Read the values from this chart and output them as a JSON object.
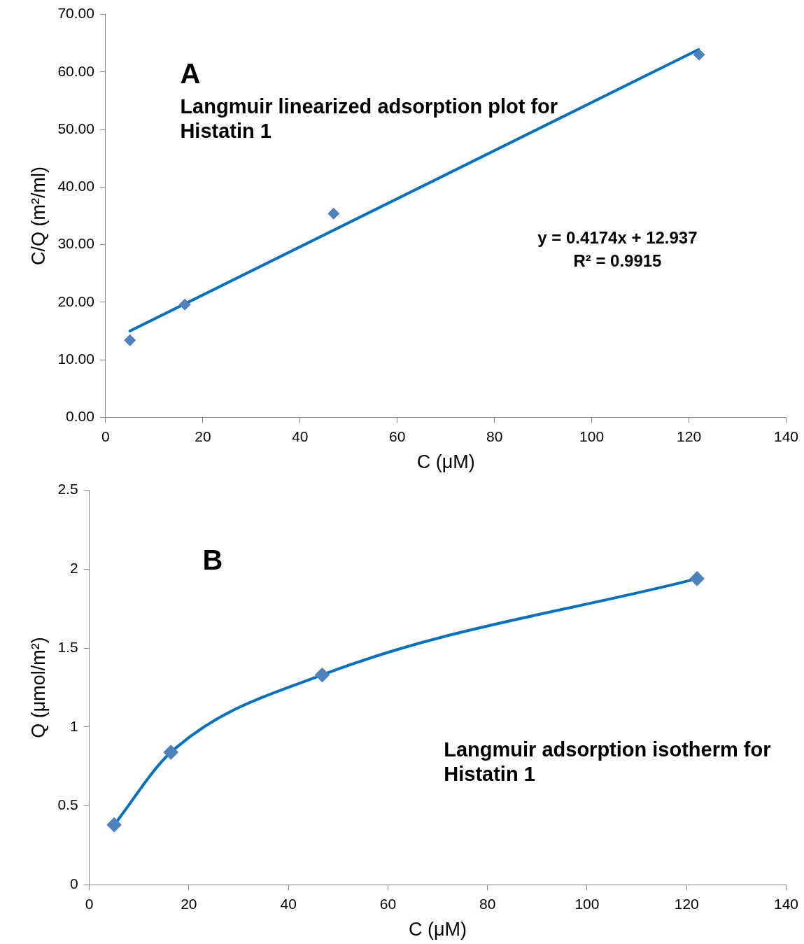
{
  "chart_data": [
    {
      "type": "scatter",
      "xlabel": "C (μM)",
      "ylabel": "C/Q (m²/ml)",
      "marker": "diamond",
      "grid": false,
      "legend": false,
      "xlim": [
        0,
        140
      ],
      "xticks": [
        0,
        20,
        40,
        60,
        80,
        100,
        120,
        140
      ],
      "ylim": [
        0,
        70
      ],
      "yticks": [
        {
          "value": 0,
          "label": "0.00"
        },
        {
          "value": 10,
          "label": "10.00"
        },
        {
          "value": 20,
          "label": "20.00"
        },
        {
          "value": 30,
          "label": "30.00"
        },
        {
          "value": 40,
          "label": "40.00"
        },
        {
          "value": 50,
          "label": "50.00"
        },
        {
          "value": 60,
          "label": "60.00"
        },
        {
          "value": 70,
          "label": "70.00"
        }
      ],
      "series": [
        {
          "color": "#4f81bd",
          "x": [
            5,
            16.3,
            46.9,
            122.1
          ],
          "values": [
            13.4,
            19.6,
            35.4,
            63.0
          ]
        },
        {
          "type": "line",
          "color": "#0070c0",
          "marker": "none",
          "x": [
            5,
            122
          ],
          "values": [
            15.0,
            63.9
          ]
        }
      ],
      "annotations": [
        "A",
        "Langmuir linearized adsorption plot for Histatin 1",
        "y = 0.4174x + 12.937",
        "R² = 0.9915"
      ]
    },
    {
      "type": "line",
      "xlabel": "C (μM)",
      "ylabel": "Q (μmol/m²)",
      "marker": "diamond",
      "grid": false,
      "legend": false,
      "xlim": [
        0,
        140
      ],
      "xticks": [
        0,
        20,
        40,
        60,
        80,
        100,
        120,
        140
      ],
      "ylim": [
        0,
        2.5
      ],
      "yticks": [
        0,
        0.5,
        1,
        1.5,
        2,
        2.5
      ],
      "series": [
        {
          "color": "#0070c0",
          "x": [
            5,
            16.4,
            46.8,
            122.1
          ],
          "values": [
            0.38,
            0.84,
            1.33,
            1.94
          ]
        }
      ],
      "annotations": [
        "B",
        "Langmuir adsorption isotherm for Histatin 1"
      ]
    }
  ]
}
